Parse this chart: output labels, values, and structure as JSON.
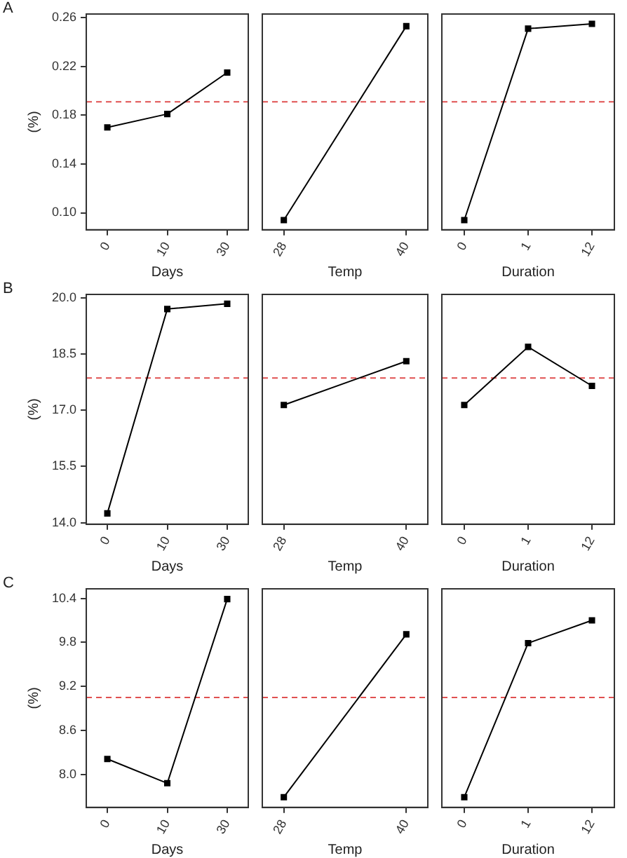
{
  "chart_data": [
    {
      "type": "line",
      "title": "A",
      "ylabel": "(%)",
      "xlabel": "Days",
      "categories": [
        "0",
        "10",
        "30"
      ],
      "values": [
        0.17,
        0.181,
        0.215
      ],
      "color": "#000000",
      "marker": "square",
      "ylim": [
        0.086,
        0.263
      ],
      "yticks": [
        {
          "value": 0.1,
          "label": "0.10"
        },
        0.14,
        0.18,
        0.22,
        0.26
      ],
      "ref_lines": [
        {
          "axis": "y",
          "value": 0.191,
          "color": "#e05050",
          "line_style": "dashed"
        }
      ]
    },
    {
      "type": "line",
      "xlabel": "Temp",
      "categories": [
        "28",
        "40"
      ],
      "values": [
        0.094,
        0.253
      ],
      "color": "#000000",
      "marker": "square",
      "ylim": [
        0.086,
        0.263
      ],
      "tick_labels": "x",
      "ref_lines": [
        {
          "axis": "y",
          "value": 0.191,
          "color": "#e05050",
          "line_style": "dashed"
        }
      ]
    },
    {
      "type": "line",
      "xlabel": "Duration",
      "categories": [
        "0",
        "1",
        "12"
      ],
      "values": [
        0.094,
        0.251,
        0.255
      ],
      "color": "#000000",
      "marker": "square",
      "ylim": [
        0.086,
        0.263
      ],
      "tick_labels": "x",
      "ref_lines": [
        {
          "axis": "y",
          "value": 0.191,
          "color": "#e05050",
          "line_style": "dashed"
        }
      ]
    },
    {
      "type": "line",
      "title": "B",
      "ylabel": "(%)",
      "xlabel": "Days",
      "categories": [
        "0",
        "10",
        "30"
      ],
      "values": [
        14.25,
        19.7,
        19.84
      ],
      "color": "#000000",
      "marker": "square",
      "ylim": [
        13.96,
        20.09
      ],
      "yticks": [
        {
          "value": 14,
          "label": "14.0"
        },
        15.5,
        {
          "value": 17,
          "label": "17.0"
        },
        18.5,
        {
          "value": 20,
          "label": "20.0"
        }
      ],
      "ref_lines": [
        {
          "axis": "y",
          "value": 17.86,
          "color": "#e05050",
          "line_style": "dashed"
        }
      ]
    },
    {
      "type": "line",
      "xlabel": "Temp",
      "categories": [
        "28",
        "40"
      ],
      "values": [
        17.14,
        18.31
      ],
      "color": "#000000",
      "marker": "square",
      "ylim": [
        13.96,
        20.09
      ],
      "tick_labels": "x",
      "ref_lines": [
        {
          "axis": "y",
          "value": 17.86,
          "color": "#e05050",
          "line_style": "dashed"
        }
      ]
    },
    {
      "type": "line",
      "xlabel": "Duration",
      "categories": [
        "0",
        "1",
        "12"
      ],
      "values": [
        17.14,
        18.69,
        17.65
      ],
      "color": "#000000",
      "marker": "square",
      "ylim": [
        13.96,
        20.09
      ],
      "tick_labels": "x",
      "ref_lines": [
        {
          "axis": "y",
          "value": 17.86,
          "color": "#e05050",
          "line_style": "dashed"
        }
      ]
    },
    {
      "type": "line",
      "title": "C",
      "ylabel": "(%)",
      "xlabel": "Days",
      "categories": [
        "0",
        "10",
        "30"
      ],
      "values": [
        8.21,
        7.88,
        10.39
      ],
      "color": "#000000",
      "marker": "square",
      "ylim": [
        7.55,
        10.53
      ],
      "yticks": [
        {
          "value": 8,
          "label": "8.0"
        },
        8.6,
        9.2,
        9.8,
        10.4
      ],
      "ref_lines": [
        {
          "axis": "y",
          "value": 9.05,
          "color": "#e05050",
          "line_style": "dashed"
        }
      ]
    },
    {
      "type": "line",
      "xlabel": "Temp",
      "categories": [
        "28",
        "40"
      ],
      "values": [
        7.69,
        9.91
      ],
      "color": "#000000",
      "marker": "square",
      "ylim": [
        7.55,
        10.53
      ],
      "tick_labels": "x",
      "ref_lines": [
        {
          "axis": "y",
          "value": 9.05,
          "color": "#e05050",
          "line_style": "dashed"
        }
      ]
    },
    {
      "type": "line",
      "xlabel": "Duration",
      "categories": [
        "0",
        "1",
        "12"
      ],
      "values": [
        7.69,
        9.79,
        10.1
      ],
      "color": "#000000",
      "marker": "square",
      "ylim": [
        7.55,
        10.53
      ],
      "tick_labels": "x",
      "ref_lines": [
        {
          "axis": "y",
          "value": 9.05,
          "color": "#e05050",
          "line_style": "dashed"
        }
      ]
    }
  ]
}
